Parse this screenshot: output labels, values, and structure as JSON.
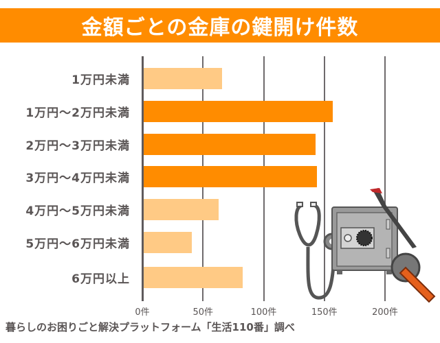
{
  "title": "金額ごとの金庫の鍵開け件数",
  "source": "暮らしのお困りごと解決プラットフォーム「生活110番」調べ",
  "colors": {
    "title_band": "#ff8c00",
    "bar_highlight": "#ff8c00",
    "bar_normal": "#ffca85",
    "axis": "#5e5a5c"
  },
  "chart_data": {
    "type": "bar",
    "orientation": "horizontal",
    "title": "金額ごとの金庫の鍵開け件数",
    "xlabel": "",
    "ylabel": "",
    "categories": [
      "1万円未満",
      "1万円～2万円未満",
      "2万円～3万円未満",
      "3万円～4万円未満",
      "4万円～5万円未満",
      "5万円～6万円未満",
      "6万円以上"
    ],
    "values": [
      66,
      157,
      143,
      144,
      63,
      41,
      83
    ],
    "highlighted": [
      false,
      true,
      true,
      true,
      false,
      false,
      false
    ],
    "xlim": [
      0,
      200
    ],
    "x_ticks": [
      0,
      50,
      100,
      150,
      200
    ],
    "x_tick_labels": [
      "0件",
      "50件",
      "100件",
      "150件",
      "200件"
    ],
    "grid": true,
    "legend": null,
    "source": "暮らしのお困りごと解決プラットフォーム「生活110番」調べ"
  },
  "illustration": {
    "items": [
      "stethoscope",
      "safe",
      "crowbar",
      "angle-grinder"
    ]
  }
}
